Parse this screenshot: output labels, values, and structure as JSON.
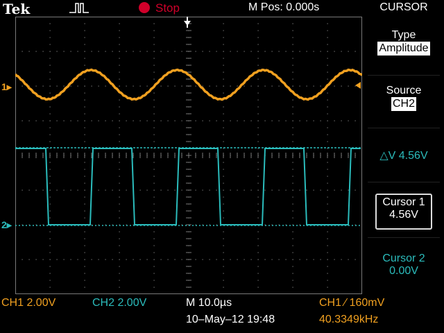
{
  "header": {
    "brand": "Tek",
    "acq_state": "Stop",
    "m_pos": "M Pos: 0.000s",
    "menu_title": "CURSOR"
  },
  "side_menu": {
    "type_label": "Type",
    "type_value": "Amplitude",
    "source_label": "Source",
    "source_value": "CH2",
    "delta_v": "△V 4.56V",
    "cursor1_label": "Cursor 1",
    "cursor1_value": "4.56V",
    "cursor2_label": "Cursor 2",
    "cursor2_value": "0.00V"
  },
  "markers": {
    "ch1": "1",
    "ch2": "2"
  },
  "status": {
    "ch1_scale": "CH1  2.00V",
    "ch2_scale": "CH2  2.00V",
    "timebase": "M 10.0µs",
    "datetime": "10–May–12 19:48",
    "trigger": "CH1 ∕ 160mV",
    "frequency": "40.3349kHz"
  },
  "colors": {
    "ch1": "#f0a020",
    "ch2": "#2bbcbc",
    "stop": "#d0002a",
    "grid": "#7a7a7a"
  },
  "icons": {
    "trigger_pulse": "pulse-trigger-icon",
    "stop_indicator": "stop-dot-icon",
    "trigger_position": "trigger-position-arrow-icon",
    "level_arrow": "trigger-level-arrow-icon"
  }
}
